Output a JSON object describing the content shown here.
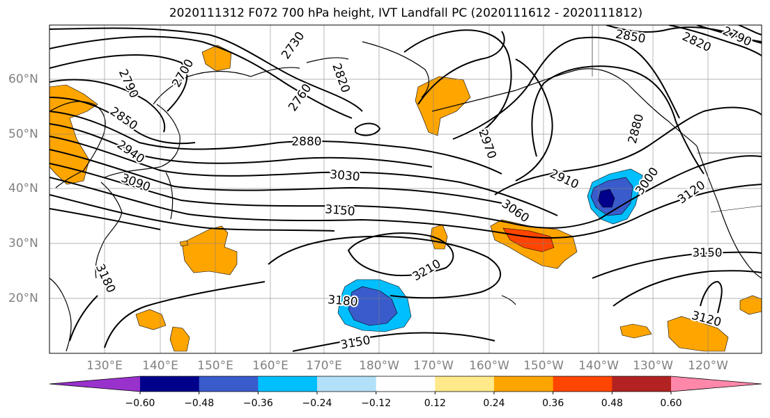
{
  "title": "2020111312 F072 700 hPa height, IVT Landfall PC (2020111612 - 2020111812)",
  "lon_labels": [
    "130°E",
    "140°E",
    "150°E",
    "160°E",
    "170°E",
    "180°W",
    "170°W",
    "160°W",
    "150°W",
    "140°W",
    "130°W",
    "120°W"
  ],
  "lat_labels": [
    "60°N",
    "50°N",
    "40°N",
    "30°N",
    "20°N"
  ],
  "contour_labels": [
    "2700",
    "2730",
    "2760",
    "2790",
    "2820",
    "2820",
    "2790",
    "2850",
    "2850",
    "2880",
    "2880",
    "2910",
    "2940",
    "2970",
    "3000",
    "3030",
    "3060",
    "3090",
    "3120",
    "3120",
    "3150",
    "3150",
    "3150",
    "3180",
    "3180",
    "3210"
  ],
  "colorbar": {
    "ticks": [
      "−0.60",
      "−0.48",
      "−0.36",
      "−0.24",
      "−0.12",
      "0.12",
      "0.24",
      "0.36",
      "0.48",
      "0.60"
    ],
    "colors": [
      "#9932CC",
      "#00008B",
      "#3A5BCB",
      "#00BFFF",
      "#B2E0F8",
      "#FFFFFF",
      "#FFE98A",
      "#FFA500",
      "#FF4500",
      "#B22222",
      "#FF88AA"
    ]
  }
}
